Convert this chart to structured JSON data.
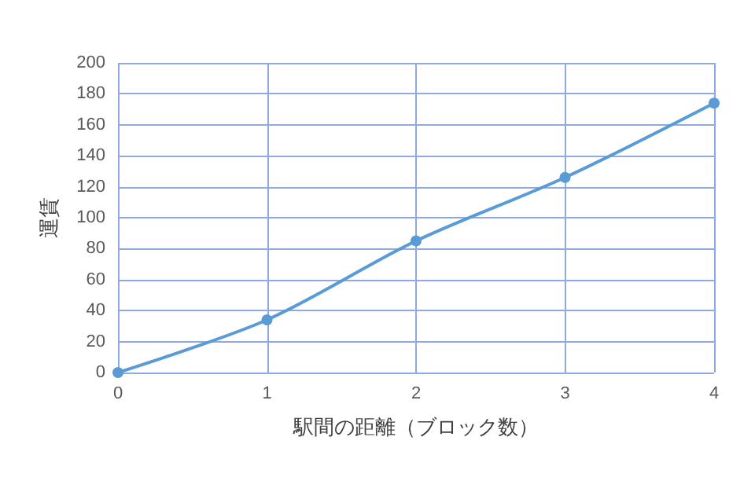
{
  "chart_data": {
    "type": "line",
    "xlabel": "駅間の距離（ブロック数）",
    "ylabel": "運賃",
    "x": [
      0,
      1,
      2,
      3,
      4
    ],
    "series": [
      {
        "color": "#5b9bd5",
        "values": [
          0,
          34,
          85,
          126,
          174
        ]
      }
    ],
    "xlim": [
      0,
      4
    ],
    "xticks": [
      0,
      1,
      2,
      3,
      4
    ],
    "ylim": [
      0,
      200
    ],
    "yticks": [
      0,
      20,
      40,
      60,
      80,
      100,
      120,
      140,
      160,
      180,
      200
    ],
    "grid": true,
    "marker": "circle",
    "line_style": "solid"
  }
}
